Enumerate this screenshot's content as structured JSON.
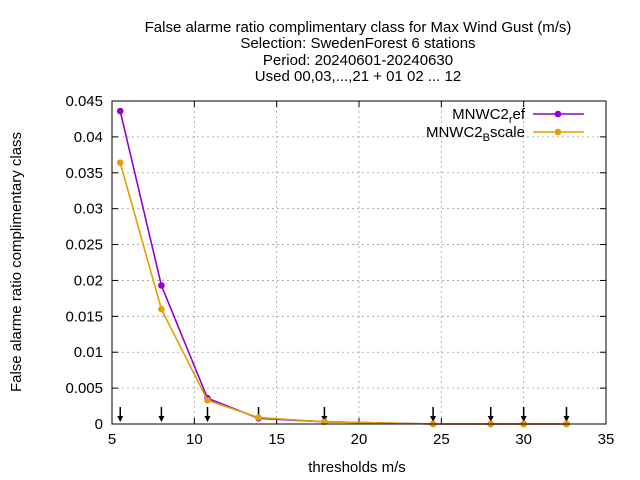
{
  "chart_data": {
    "type": "line",
    "title_lines": [
      "False alarme ratio complimentary class  for Max Wind Gust (m/s)",
      "Selection: SwedenForest      6 stations",
      "Period: 20240601-20240630",
      "Used 00,03,...,21 + 01 02 ... 12"
    ],
    "xlabel": "thresholds m/s",
    "ylabel": "False alarme ratio complimentary class",
    "xlim": [
      5,
      35
    ],
    "ylim": [
      0,
      0.045
    ],
    "xticks": [
      5,
      10,
      15,
      20,
      25,
      30,
      35
    ],
    "xtick_labels": [
      "5",
      "10",
      "15",
      "20",
      "25",
      "30",
      "35"
    ],
    "yticks": [
      0,
      0.005,
      0.01,
      0.015,
      0.02,
      0.025,
      0.03,
      0.035,
      0.04,
      0.045
    ],
    "ytick_labels": [
      "0",
      "0.005",
      "0.01",
      "0.015",
      "0.02",
      "0.025",
      "0.03",
      "0.035",
      "0.04",
      "0.045"
    ],
    "grid": true,
    "legend_position": "top-right",
    "series": [
      {
        "name": "MNWC2_ref",
        "legend_main": "MNWC2",
        "legend_sub": "r",
        "legend_tail": "ef",
        "color": "#9400d3",
        "x": [
          5.5,
          8.0,
          10.8,
          13.9,
          17.9,
          24.5,
          28.0,
          30.0,
          32.6
        ],
        "y": [
          0.0436,
          0.0193,
          0.0036,
          0.0008,
          0.0003,
          0.0,
          0.0,
          0.0,
          0.0
        ]
      },
      {
        "name": "MNWC2_Bscale",
        "legend_main": "MNWC2",
        "legend_sub": "B",
        "legend_tail": "scale",
        "color": "#e69f00",
        "x": [
          5.5,
          8.0,
          10.8,
          13.9,
          17.9,
          24.5,
          28.0,
          30.0,
          32.6
        ],
        "y": [
          0.0364,
          0.016,
          0.0033,
          0.0009,
          0.0003,
          0.0,
          0.0,
          0.0,
          0.0
        ]
      }
    ],
    "threshold_arrows_x": [
      5.5,
      8.0,
      10.8,
      13.9,
      17.9,
      24.5,
      28.0,
      30.0,
      32.6
    ]
  }
}
